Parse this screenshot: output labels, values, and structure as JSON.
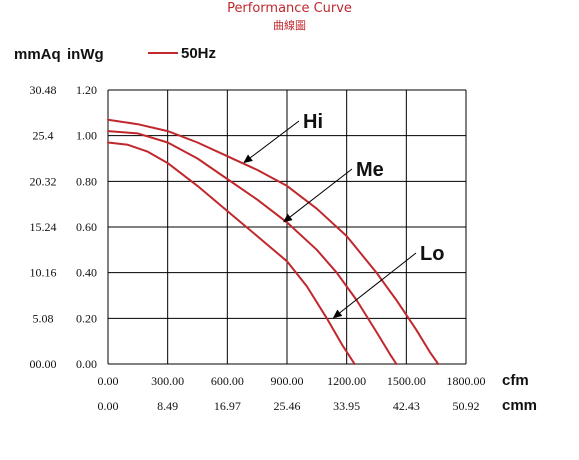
{
  "title": "Performance Curve",
  "subtitle": "曲線圖",
  "chart_data": {
    "type": "line",
    "title": "Performance Curve",
    "subtitle": "曲線圖",
    "y_units": [
      "mmAq",
      "inWg"
    ],
    "x_units": [
      "cfm",
      "cmm"
    ],
    "legend": {
      "label": "50Hz",
      "color": "#c0282d",
      "placement": "top-left"
    },
    "xlim": [
      0,
      1800
    ],
    "ylim": [
      0,
      1.2
    ],
    "grid": true,
    "x_ticks_cfm": [
      "0.00",
      "300.00",
      "600.00",
      "900.00",
      "1200.00",
      "1500.00",
      "1800.00"
    ],
    "x_ticks_cmm": [
      "0.00",
      "8.49",
      "16.97",
      "25.46",
      "33.95",
      "42.43",
      "50.92"
    ],
    "y_ticks_inwg": [
      "0.00",
      "0.20",
      "0.40",
      "0.60",
      "0.80",
      "1.00",
      "1.20"
    ],
    "y_ticks_mmaq": [
      "00.00",
      "5.08",
      "10.16",
      "15.24",
      "20.32",
      "25.4",
      "30.48"
    ],
    "series": [
      {
        "name": "Hi",
        "color": "#c0282d",
        "x": [
          0,
          150,
          300,
          450,
          600,
          750,
          900,
          1050,
          1200,
          1350,
          1450,
          1550,
          1620,
          1660
        ],
        "y": [
          1.07,
          1.05,
          1.02,
          0.97,
          0.91,
          0.85,
          0.78,
          0.68,
          0.56,
          0.4,
          0.28,
          0.15,
          0.05,
          0.0
        ]
      },
      {
        "name": "Me",
        "color": "#c0282d",
        "x": [
          0,
          150,
          300,
          450,
          600,
          750,
          900,
          1050,
          1150,
          1250,
          1350,
          1420,
          1450
        ],
        "y": [
          1.02,
          1.01,
          0.97,
          0.9,
          0.81,
          0.72,
          0.62,
          0.5,
          0.4,
          0.28,
          0.14,
          0.04,
          0.0
        ]
      },
      {
        "name": "Lo",
        "color": "#c0282d",
        "x": [
          0,
          100,
          200,
          300,
          450,
          600,
          750,
          900,
          1000,
          1100,
          1180,
          1240
        ],
        "y": [
          0.97,
          0.96,
          0.93,
          0.88,
          0.78,
          0.67,
          0.56,
          0.45,
          0.34,
          0.2,
          0.08,
          0.0
        ]
      }
    ],
    "annotations": [
      {
        "text": "Hi",
        "series": "Hi",
        "point": [
          680,
          0.88
        ]
      },
      {
        "text": "Me",
        "series": "Me",
        "point": [
          880,
          0.62
        ]
      },
      {
        "text": "Lo",
        "series": "Lo",
        "point": [
          1130,
          0.2
        ]
      }
    ]
  }
}
